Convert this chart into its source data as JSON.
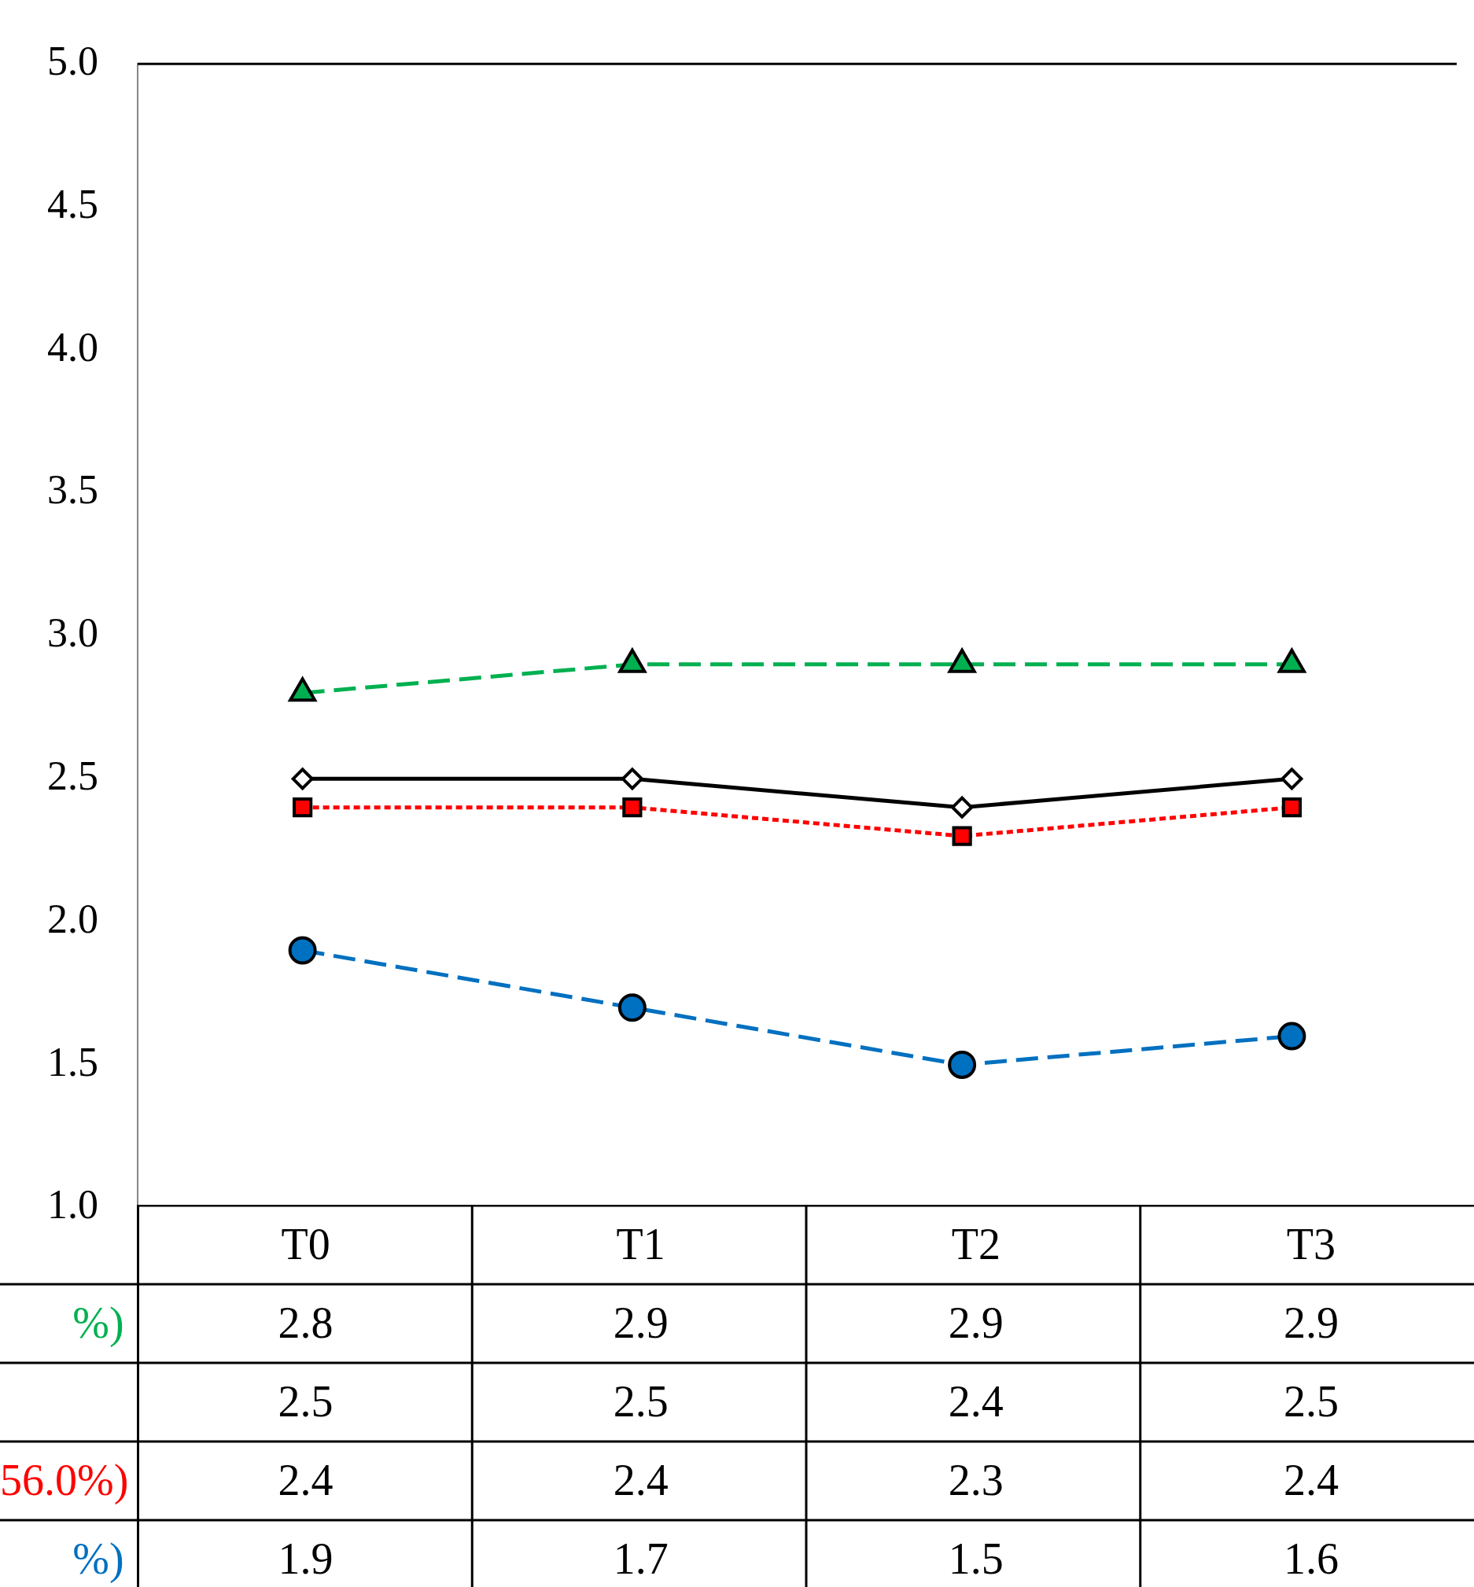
{
  "chart_data": {
    "type": "line",
    "categories": [
      "T0",
      "T1",
      "T2",
      "T3"
    ],
    "ylim": [
      1,
      5
    ],
    "yticks": [
      {
        "value": 1,
        "label": "1.0"
      },
      {
        "value": 1.5,
        "label": "1.5"
      },
      {
        "value": 2,
        "label": "2.0"
      },
      {
        "value": 2.5,
        "label": "2.5"
      },
      {
        "value": 3,
        "label": "3.0"
      },
      {
        "value": 3.5,
        "label": "3.5"
      },
      {
        "value": 4,
        "label": "4.0"
      },
      {
        "value": 4.5,
        "label": "4.5"
      },
      {
        "value": 5,
        "label": "5.0"
      }
    ],
    "grid": false,
    "data_labels": true,
    "legend": "left",
    "series": [
      {
        "name": "%)",
        "color": "#00b050",
        "values": [
          2.8,
          2.9,
          2.9,
          2.9
        ],
        "marker": "triangle",
        "line_style": "dashed"
      },
      {
        "color": "#000000",
        "values": [
          2.5,
          2.5,
          2.4,
          2.5
        ],
        "marker": "diamond",
        "line_style": "solid"
      },
      {
        "name": "56.0%)",
        "color": "#ff0000",
        "values": [
          2.4,
          2.4,
          2.3,
          2.4
        ],
        "marker": "square",
        "line_style": "dotted"
      },
      {
        "name": "%)",
        "color": "#0070c0",
        "values": [
          1.9,
          1.7,
          1.5,
          1.6
        ],
        "marker": "circle",
        "line_style": "dashed"
      }
    ]
  }
}
